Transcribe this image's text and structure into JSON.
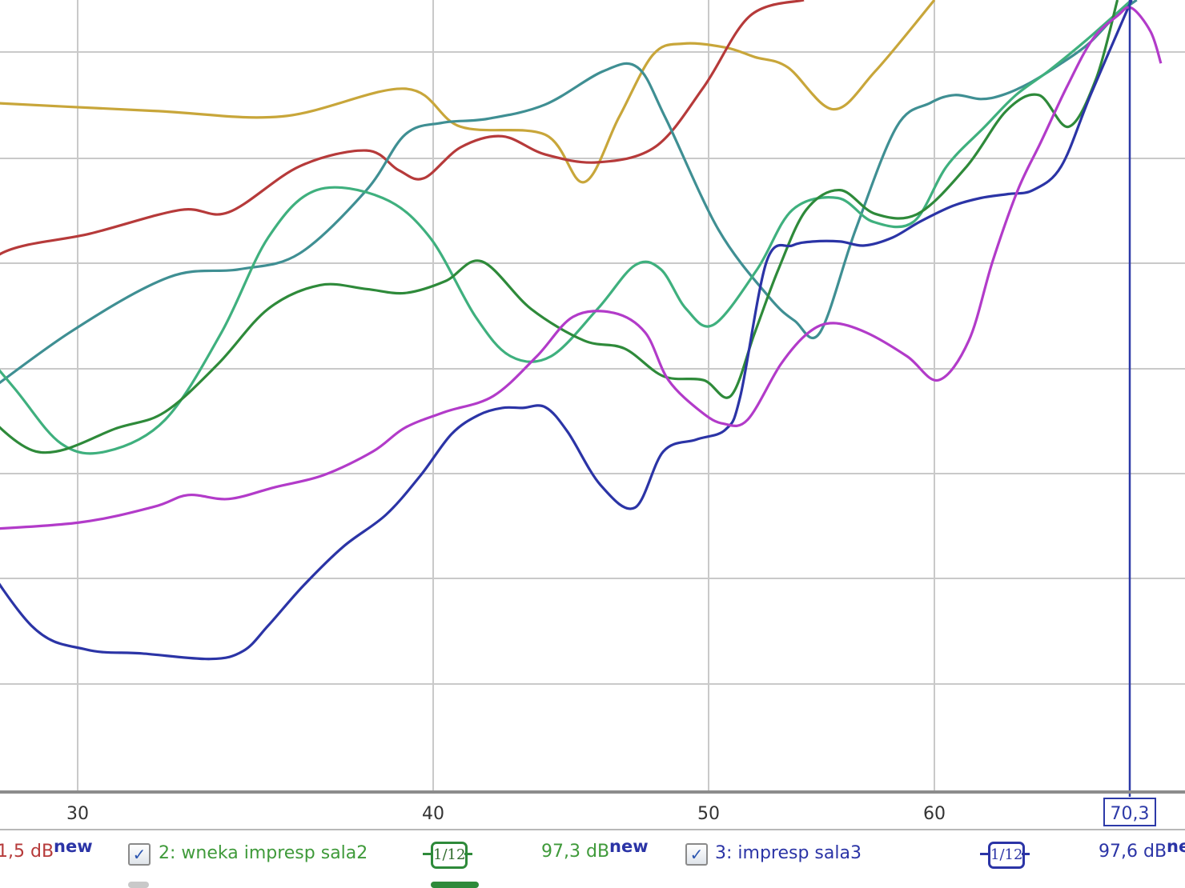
{
  "chart_data": {
    "type": "line",
    "x_ticks": [
      "30",
      "40",
      "50",
      "60"
    ],
    "cursor": {
      "x": 70.3,
      "label": "70,3",
      "color": "#2d3aa8"
    },
    "grid": true,
    "series": [
      {
        "color": "#c8a63a",
        "x": [
          27.3,
          31.9,
          35.4,
          39.1,
          40.9,
          43.8,
          45.2,
          46.5,
          47.8,
          49.0,
          50.7,
          51.9,
          53.3,
          55.3,
          57.2,
          60.0
        ],
        "y": [
          0.128,
          0.14,
          0.147,
          0.112,
          0.16,
          0.17,
          0.23,
          0.148,
          0.069,
          0.055,
          0.06,
          0.072,
          0.085,
          0.138,
          0.09,
          0.0
        ]
      },
      {
        "color": "#b63a3a",
        "x": [
          27.3,
          28.2,
          30.3,
          32.6,
          33.9,
          35.9,
          37.9,
          38.9,
          39.7,
          40.9,
          42.3,
          43.8,
          45.7,
          47.9,
          49.8,
          51.7,
          54.0
        ],
        "y": [
          0.38,
          0.32,
          0.295,
          0.265,
          0.268,
          0.21,
          0.19,
          0.215,
          0.225,
          0.186,
          0.172,
          0.195,
          0.205,
          0.185,
          0.11,
          0.02,
          0.0
        ]
      },
      {
        "color": "#3f8f93",
        "x": [
          27.3,
          29.8,
          32.3,
          34.2,
          35.9,
          37.9,
          39.1,
          40.3,
          41.8,
          43.8,
          45.9,
          47.2,
          48.3,
          50.4,
          52.5,
          53.6,
          54.7,
          56.3,
          58.2,
          59.8,
          61.0,
          62.3,
          63.4,
          64.8,
          66.5,
          68.0,
          69.5,
          70.7
        ],
        "y": [
          0.52,
          0.42,
          0.35,
          0.34,
          0.32,
          0.24,
          0.17,
          0.155,
          0.15,
          0.132,
          0.09,
          0.085,
          0.15,
          0.29,
          0.375,
          0.405,
          0.42,
          0.29,
          0.16,
          0.13,
          0.12,
          0.125,
          0.12,
          0.105,
          0.08,
          0.055,
          0.02,
          0.0
        ]
      },
      {
        "color": "#3fb07e",
        "x": [
          27.3,
          28.5,
          29.6,
          30.7,
          32.2,
          33.7,
          35.0,
          36.4,
          38.4,
          39.9,
          41.4,
          42.6,
          44.0,
          45.7,
          47.1,
          48.1,
          49.1,
          50.2,
          52.0,
          53.5,
          55.5,
          57.1,
          59.0,
          60.6,
          62.5,
          64.1,
          65.8,
          67.9,
          70.4
        ],
        "y": [
          0.41,
          0.49,
          0.56,
          0.57,
          0.53,
          0.42,
          0.3,
          0.24,
          0.25,
          0.3,
          0.4,
          0.45,
          0.45,
          0.39,
          0.335,
          0.34,
          0.39,
          0.41,
          0.34,
          0.265,
          0.25,
          0.28,
          0.28,
          0.21,
          0.16,
          0.12,
          0.09,
          0.05,
          0.0
        ]
      },
      {
        "color": "#2e8a3a",
        "x": [
          27.3,
          29.0,
          31.0,
          32.2,
          33.6,
          35.0,
          36.5,
          37.9,
          39.1,
          40.4,
          41.6,
          43.3,
          45.2,
          46.7,
          48.2,
          49.8,
          50.9,
          51.9,
          52.9,
          54.1,
          55.6,
          57.2,
          59.2,
          61.6,
          63.6,
          65.3,
          66.9,
          68.4,
          69.6
        ],
        "y": [
          0.49,
          0.57,
          0.54,
          0.52,
          0.46,
          0.39,
          0.36,
          0.365,
          0.37,
          0.355,
          0.33,
          0.39,
          0.43,
          0.44,
          0.475,
          0.48,
          0.5,
          0.42,
          0.34,
          0.265,
          0.24,
          0.27,
          0.27,
          0.21,
          0.14,
          0.12,
          0.16,
          0.1,
          0.0
        ]
      },
      {
        "color": "#2b34a6",
        "x": [
          27.3,
          28.9,
          30.2,
          31.6,
          33.4,
          34.3,
          35.0,
          36.0,
          37.2,
          38.5,
          39.6,
          40.6,
          41.5,
          42.3,
          43.0,
          43.8,
          44.6,
          45.8,
          47.1,
          48.2,
          49.5,
          50.7,
          51.3,
          52.4,
          53.5,
          54.4,
          55.6,
          56.7,
          58.0,
          59.3,
          60.9,
          62.3,
          63.7,
          65.0,
          66.5,
          68.1,
          70.4
        ],
        "y": [
          0.665,
          0.79,
          0.82,
          0.825,
          0.832,
          0.822,
          0.79,
          0.74,
          0.69,
          0.65,
          0.6,
          0.548,
          0.524,
          0.515,
          0.515,
          0.514,
          0.545,
          0.612,
          0.641,
          0.57,
          0.555,
          0.542,
          0.5,
          0.33,
          0.31,
          0.305,
          0.305,
          0.31,
          0.3,
          0.28,
          0.26,
          0.25,
          0.245,
          0.24,
          0.21,
          0.12,
          0.0
        ]
      },
      {
        "color": "#b23bc9",
        "x": [
          27.3,
          30.0,
          31.9,
          32.8,
          33.9,
          35.2,
          36.6,
          38.1,
          39.1,
          40.4,
          42.0,
          43.5,
          44.8,
          46.3,
          47.5,
          48.4,
          49.7,
          50.6,
          51.6,
          53.0,
          54.2,
          55.3,
          56.8,
          58.7,
          60.2,
          61.7,
          62.9,
          64.2,
          65.4,
          66.8,
          68.2,
          69.6,
          70.4,
          71.5,
          72.1
        ],
        "y": [
          0.67,
          0.66,
          0.64,
          0.625,
          0.63,
          0.615,
          0.6,
          0.57,
          0.54,
          0.52,
          0.5,
          0.45,
          0.4,
          0.395,
          0.42,
          0.48,
          0.52,
          0.535,
          0.53,
          0.46,
          0.42,
          0.408,
          0.42,
          0.45,
          0.48,
          0.43,
          0.33,
          0.24,
          0.18,
          0.11,
          0.05,
          0.02,
          0.01,
          0.04,
          0.08
        ]
      }
    ]
  },
  "legend": {
    "left_value": "1,5 dB",
    "left_new": "new",
    "item2_label": "2: wneka impresp sala2",
    "item2_check": "✓",
    "item2_smoothing": "1/12",
    "item2_value": "97,3 dB",
    "item2_new": "new",
    "item3_label": "3: impresp sala3",
    "item3_check": "✓",
    "item3_smoothing": "1/12",
    "item3_value": "97,6 dB",
    "item3_new": "ne"
  }
}
